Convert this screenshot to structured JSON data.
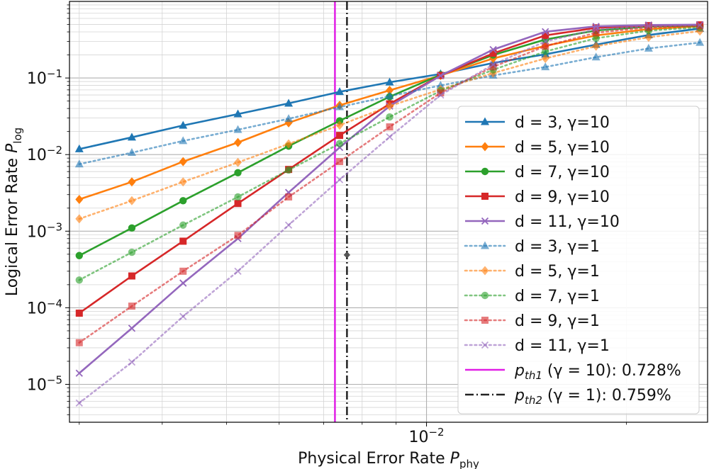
{
  "chart_data": {
    "type": "line",
    "title": "",
    "x_scale": "log",
    "y_scale": "log",
    "xlim": [
      0.0029,
      0.0265
    ],
    "ylim": [
      3.2e-06,
      1.0
    ],
    "grid": true,
    "legend_placement": "lower-right",
    "x": [
      0.004,
      0.0045,
      0.005,
      0.0055,
      0.006,
      0.0065,
      0.007,
      0.0075,
      0.008,
      0.009,
      0.01,
      0.011,
      0.012,
      0.013,
      0.014,
      0.015
    ],
    "x_ticks": [
      {
        "value": 0.01,
        "base": "10",
        "exp": "−2"
      }
    ],
    "y_ticks": [
      {
        "value": 1e-05,
        "base": "10",
        "exp": "−5"
      },
      {
        "value": 0.0001,
        "base": "10",
        "exp": "−4"
      },
      {
        "value": 0.001,
        "base": "10",
        "exp": "−3"
      },
      {
        "value": 0.01,
        "base": "10",
        "exp": "−2"
      },
      {
        "value": 0.1,
        "base": "10",
        "exp": "−1"
      }
    ],
    "xlabel": {
      "text": "Physical Error Rate ",
      "sym": "P",
      "sub": "phy"
    },
    "ylabel": {
      "text": "Logical Error Rate ",
      "sym": "P",
      "sub": "log"
    },
    "series": [
      {
        "name": "d = 3, γ=10",
        "color": "#1f77b4",
        "marker": "triangle",
        "dash": "solid",
        "alpha": 1,
        "x": [
          0.003,
          0.0036,
          0.0043,
          0.0052,
          0.0062,
          0.0074,
          0.0088,
          0.0105,
          0.0126,
          0.0151,
          0.018,
          0.0216,
          0.0258
        ],
        "y": [
          0.0118,
          0.0168,
          0.024,
          0.0338,
          0.0466,
          0.066,
          0.088,
          0.113,
          0.157,
          0.204,
          0.273,
          0.364,
          0.442
        ]
      },
      {
        "name": "d = 5, γ=10",
        "color": "#ff7f0e",
        "marker": "diamond",
        "dash": "solid",
        "alpha": 1,
        "x": [
          0.003,
          0.0036,
          0.0043,
          0.0052,
          0.0062,
          0.0074,
          0.0088,
          0.0105,
          0.0126,
          0.0151,
          0.018,
          0.0216,
          0.0258
        ],
        "y": [
          0.0026,
          0.0044,
          0.0081,
          0.0144,
          0.026,
          0.044,
          0.069,
          0.108,
          0.18,
          0.263,
          0.36,
          0.435,
          0.474
        ]
      },
      {
        "name": "d = 7, γ=10",
        "color": "#2ca02c",
        "marker": "circle",
        "dash": "solid",
        "alpha": 1,
        "x": [
          0.003,
          0.0036,
          0.0043,
          0.0052,
          0.0062,
          0.0074,
          0.0088,
          0.0105,
          0.0126,
          0.0151,
          0.018,
          0.0216,
          0.0258
        ],
        "y": [
          0.00048,
          0.0011,
          0.0025,
          0.0058,
          0.0129,
          0.0276,
          0.057,
          0.11,
          0.2,
          0.318,
          0.418,
          0.47,
          0.486
        ]
      },
      {
        "name": "d = 9, γ=10",
        "color": "#d62728",
        "marker": "square",
        "dash": "solid",
        "alpha": 1,
        "x": [
          0.003,
          0.0036,
          0.0043,
          0.0052,
          0.0062,
          0.0074,
          0.0088,
          0.0105,
          0.0126,
          0.0151,
          0.018,
          0.0216,
          0.0258
        ],
        "y": [
          8.5e-05,
          0.00026,
          0.00074,
          0.0023,
          0.0064,
          0.0178,
          0.046,
          0.108,
          0.21,
          0.36,
          0.452,
          0.483,
          0.494
        ]
      },
      {
        "name": "d = 11, γ=10",
        "color": "#9467bd",
        "marker": "x",
        "dash": "solid",
        "alpha": 1,
        "x": [
          0.003,
          0.0036,
          0.0043,
          0.0052,
          0.0062,
          0.0074,
          0.0088,
          0.0105,
          0.0126,
          0.0151,
          0.018,
          0.0216,
          0.0258
        ],
        "y": [
          1.4e-05,
          5.4e-05,
          0.00021,
          0.0008,
          0.0032,
          0.0124,
          0.043,
          0.107,
          0.235,
          0.402,
          0.472,
          0.492,
          0.497
        ]
      },
      {
        "name": "d = 3, γ=1",
        "color": "#1f77b4",
        "marker": "triangle",
        "dash": "dotted",
        "alpha": 0.6,
        "x": [
          0.003,
          0.0036,
          0.0043,
          0.0052,
          0.0062,
          0.0074,
          0.0088,
          0.0105,
          0.0126,
          0.0151,
          0.018,
          0.0216,
          0.0258
        ],
        "y": [
          0.0075,
          0.0106,
          0.0151,
          0.0211,
          0.0294,
          0.0418,
          0.058,
          0.08,
          0.108,
          0.139,
          0.187,
          0.243,
          0.29
        ]
      },
      {
        "name": "d = 5, γ=1",
        "color": "#ff7f0e",
        "marker": "diamond",
        "dash": "dotted",
        "alpha": 0.6,
        "x": [
          0.003,
          0.0036,
          0.0043,
          0.0052,
          0.0062,
          0.0074,
          0.0088,
          0.0105,
          0.0126,
          0.0151,
          0.018,
          0.0216,
          0.0258
        ],
        "y": [
          0.00145,
          0.0025,
          0.0044,
          0.0079,
          0.0138,
          0.0242,
          0.043,
          0.071,
          0.116,
          0.18,
          0.26,
          0.34,
          0.41
        ]
      },
      {
        "name": "d = 7, γ=1",
        "color": "#2ca02c",
        "marker": "circle",
        "dash": "dotted",
        "alpha": 0.6,
        "x": [
          0.003,
          0.0036,
          0.0043,
          0.0052,
          0.0062,
          0.0074,
          0.0088,
          0.0105,
          0.0126,
          0.0151,
          0.018,
          0.0216,
          0.0258
        ],
        "y": [
          0.00023,
          0.00053,
          0.0012,
          0.0028,
          0.0063,
          0.0139,
          0.031,
          0.068,
          0.128,
          0.222,
          0.33,
          0.415,
          0.46
        ]
      },
      {
        "name": "d = 9, γ=1",
        "color": "#d62728",
        "marker": "square",
        "dash": "dotted",
        "alpha": 0.6,
        "x": [
          0.003,
          0.0036,
          0.0043,
          0.0052,
          0.0062,
          0.0074,
          0.0088,
          0.0105,
          0.0126,
          0.0151,
          0.018,
          0.0216,
          0.0258
        ],
        "y": [
          3.5e-05,
          0.000105,
          0.0003,
          0.00088,
          0.0028,
          0.0081,
          0.023,
          0.064,
          0.14,
          0.26,
          0.39,
          0.458,
          0.48
        ]
      },
      {
        "name": "d = 11, γ=1",
        "color": "#9467bd",
        "marker": "x",
        "dash": "dotted",
        "alpha": 0.6,
        "x": [
          0.003,
          0.0036,
          0.0043,
          0.0052,
          0.0062,
          0.0074,
          0.0088,
          0.0105,
          0.0126,
          0.0151,
          0.018,
          0.0216,
          0.0258
        ],
        "y": [
          5.7e-06,
          1.95e-05,
          7.7e-05,
          0.0003,
          0.0012,
          0.0047,
          0.017,
          0.06,
          0.15,
          0.3,
          0.43,
          0.474,
          0.49
        ]
      }
    ],
    "vlines": [
      {
        "name": "pth1",
        "sym": "p",
        "sub": "th1",
        "expr": " (γ = 10): 0.728%",
        "x": 0.00728,
        "color": "#e11ee6",
        "dash": "solid"
      },
      {
        "name": "pth2",
        "sym": "p",
        "sub": "th2",
        "expr": " (γ = 1): 0.759%",
        "x": 0.00759,
        "color": "#222222",
        "dash": "dashdot"
      }
    ],
    "errorbar": {
      "x": 0.00759,
      "y": 0.00049,
      "xerr": 8e-05,
      "color": "#555555"
    }
  }
}
